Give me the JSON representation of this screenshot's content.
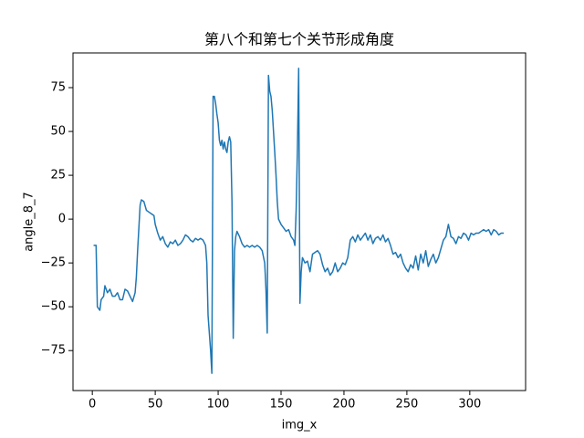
{
  "chart_data": {
    "type": "line",
    "title": "第八个和第七个关节形成角度",
    "xlabel": "img_x",
    "ylabel": "angle_8_7",
    "color": "#1f77b4",
    "x": [
      1,
      3,
      4,
      6,
      7,
      9,
      10,
      12,
      14,
      16,
      18,
      20,
      22,
      24,
      26,
      28,
      30,
      32,
      34,
      35,
      36,
      37,
      38,
      39,
      41,
      43,
      45,
      47,
      49,
      50,
      52,
      54,
      56,
      58,
      60,
      62,
      64,
      66,
      68,
      70,
      72,
      74,
      76,
      78,
      80,
      82,
      84,
      86,
      88,
      90,
      91,
      92,
      93,
      94,
      95,
      96,
      97,
      98,
      99,
      100,
      101,
      102,
      103,
      104,
      105,
      106,
      107,
      108,
      109,
      110,
      111,
      112,
      113,
      114,
      115,
      117,
      119,
      121,
      123,
      125,
      127,
      129,
      131,
      133,
      135,
      137,
      138,
      139,
      140,
      141,
      142,
      143,
      144,
      145,
      146,
      147,
      148,
      150,
      152,
      154,
      156,
      158,
      160,
      161,
      162,
      163,
      164,
      165,
      166,
      167,
      169,
      171,
      173,
      175,
      177,
      179,
      181,
      183,
      185,
      187,
      189,
      191,
      193,
      195,
      197,
      199,
      201,
      203,
      205,
      207,
      209,
      211,
      213,
      215,
      217,
      219,
      221,
      223,
      225,
      227,
      229,
      231,
      233,
      235,
      237,
      239,
      241,
      243,
      245,
      247,
      249,
      251,
      253,
      255,
      257,
      259,
      261,
      263,
      265,
      267,
      269,
      271,
      273,
      275,
      277,
      279,
      281,
      283,
      285,
      287,
      289,
      291,
      293,
      295,
      297,
      299,
      301,
      303,
      305,
      307,
      309,
      311,
      313,
      315,
      317,
      319,
      321,
      323,
      325,
      327
    ],
    "values": [
      -15,
      -15,
      -50,
      -52,
      -46,
      -44,
      -38,
      -42,
      -40,
      -44,
      -44,
      -42,
      -46,
      -46,
      -40,
      -41,
      -44,
      -47,
      -42,
      -33,
      -18,
      -5,
      8,
      11,
      10,
      5,
      4,
      3,
      2,
      -3,
      -8,
      -12,
      -10,
      -14,
      -16,
      -13,
      -14,
      -12,
      -15,
      -14,
      -12,
      -9,
      -10,
      -12,
      -13,
      -11,
      -12,
      -11,
      -12,
      -15,
      -25,
      -55,
      -65,
      -75,
      -88,
      70,
      70,
      66,
      60,
      55,
      45,
      42,
      45,
      40,
      44,
      40,
      38,
      44,
      47,
      44,
      10,
      -68,
      -18,
      -10,
      -7,
      -10,
      -14,
      -16,
      -15,
      -16,
      -15,
      -16,
      -15,
      -16,
      -18,
      -25,
      -40,
      -65,
      82,
      73,
      70,
      62,
      50,
      38,
      25,
      10,
      0,
      -3,
      -5,
      -7,
      -6,
      -10,
      -12,
      -15,
      5,
      40,
      86,
      -48,
      -30,
      -22,
      -25,
      -24,
      -30,
      -20,
      -19,
      -18,
      -20,
      -26,
      -30,
      -28,
      -32,
      -30,
      -25,
      -30,
      -28,
      -25,
      -26,
      -22,
      -12,
      -10,
      -13,
      -9,
      -12,
      -10,
      -8,
      -12,
      -9,
      -14,
      -11,
      -10,
      -12,
      -9,
      -13,
      -11,
      -15,
      -20,
      -19,
      -22,
      -20,
      -25,
      -28,
      -30,
      -26,
      -28,
      -21,
      -29,
      -20,
      -25,
      -18,
      -27,
      -23,
      -20,
      -25,
      -22,
      -17,
      -12,
      -10,
      -3,
      -10,
      -11,
      -14,
      -10,
      -11,
      -8,
      -9,
      -12,
      -8,
      -9,
      -8,
      -8,
      -7,
      -6,
      -7,
      -6,
      -9,
      -6,
      -7,
      -9,
      -8,
      -8
    ],
    "xlim": [
      -15.35,
      344.35
    ],
    "ylim": [
      -97.8,
      94.8
    ],
    "xticks": [
      0,
      50,
      100,
      150,
      200,
      250,
      300
    ],
    "yticks": [
      {
        "value": -75,
        "label": "−75"
      },
      {
        "value": -50,
        "label": "−50"
      },
      {
        "value": -25,
        "label": "−25"
      },
      0,
      25,
      50,
      75
    ]
  }
}
